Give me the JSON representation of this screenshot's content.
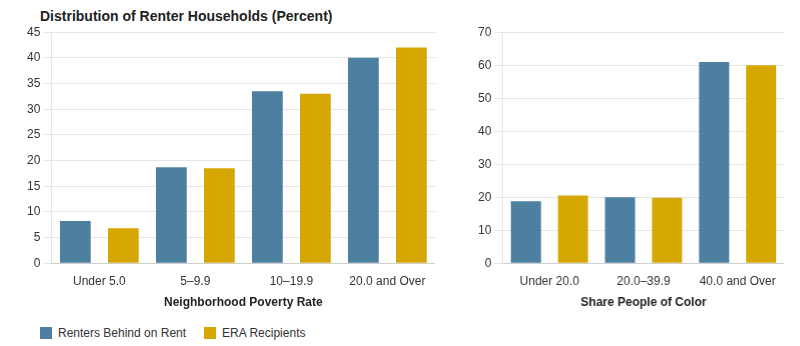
{
  "chart_data": [
    {
      "type": "bar",
      "title": "Distribution of Renter Households (Percent)",
      "xlabel": "Neighborhood Poverty Rate",
      "categories": [
        "Under 5.0",
        "5–9.9",
        "10–19.9",
        "20.0 and Over"
      ],
      "series": [
        {
          "name": "Renters Behind on Rent",
          "color": "#4d7fa0",
          "values": [
            8.2,
            18.7,
            33.5,
            40.0
          ]
        },
        {
          "name": "ERA Recipients",
          "color": "#d4a800",
          "values": [
            6.8,
            18.5,
            33.0,
            42.0
          ]
        }
      ],
      "ylim": [
        0,
        45
      ],
      "yticks": [
        0,
        5,
        10,
        15,
        20,
        25,
        30,
        35,
        40,
        45
      ],
      "grid": true,
      "legend": "lower left"
    },
    {
      "type": "bar",
      "xlabel": "Share People of Color",
      "categories": [
        "Under 20.0",
        "20.0–39.9",
        "40.0 and Over"
      ],
      "series": [
        {
          "name": "Renters Behind on Rent",
          "color": "#4d7fa0",
          "values": [
            18.8,
            20.0,
            61.0
          ]
        },
        {
          "name": "ERA Recipients",
          "color": "#d4a800",
          "values": [
            20.5,
            19.8,
            60.0
          ]
        }
      ],
      "ylim": [
        0,
        70
      ],
      "yticks": [
        0,
        10,
        20,
        30,
        40,
        50,
        60,
        70
      ],
      "grid": true
    }
  ]
}
